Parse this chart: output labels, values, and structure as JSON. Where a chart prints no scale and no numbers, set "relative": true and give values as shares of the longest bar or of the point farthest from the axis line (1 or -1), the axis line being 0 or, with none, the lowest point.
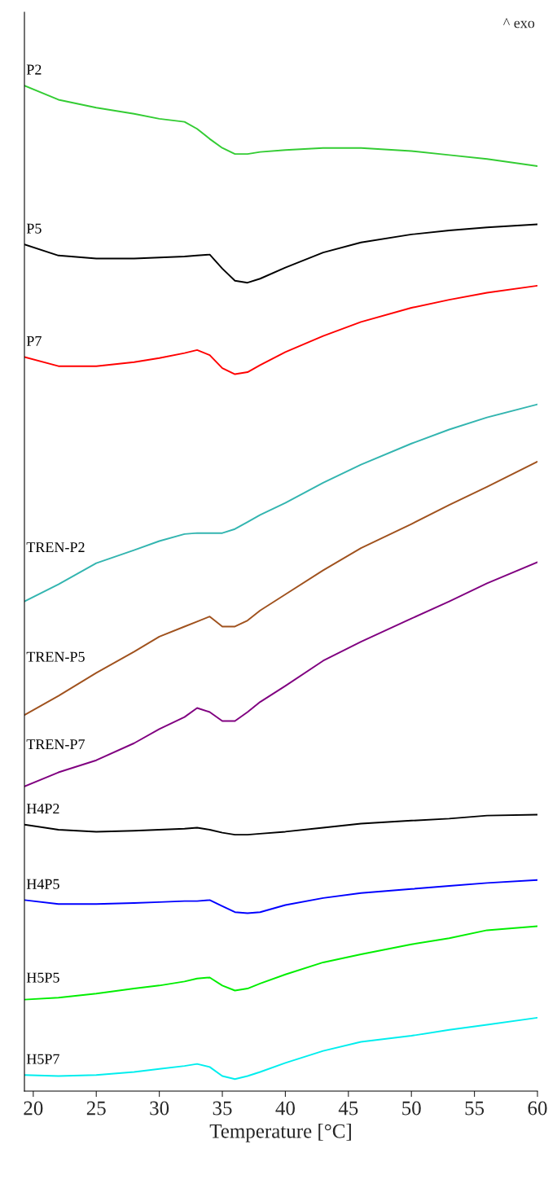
{
  "chart_data": {
    "type": "line",
    "relative": true,
    "xlabel": "Temperature [°C]",
    "annotations": [
      "^ exo"
    ],
    "x": [
      19.3,
      22,
      25,
      28,
      30,
      32,
      33,
      34,
      35,
      36,
      37,
      38,
      40,
      43,
      46,
      50,
      53,
      56,
      60
    ],
    "xlim": [
      19.3,
      60
    ],
    "xticks": [
      20,
      25,
      30,
      35,
      40,
      45,
      50,
      55,
      60
    ],
    "grid": false,
    "legend": false,
    "marker": "none",
    "line_style": "solid",
    "series": [
      {
        "name": "P2",
        "color": "#33cc33",
        "values": [
          1.0,
          0.986,
          0.978,
          0.972,
          0.967,
          0.964,
          0.957,
          0.947,
          0.938,
          0.932,
          0.932,
          0.934,
          0.936,
          0.938,
          0.938,
          0.935,
          0.931,
          0.927,
          0.92
        ]
      },
      {
        "name": "P5",
        "color": "#000000",
        "values": [
          0.842,
          0.831,
          0.828,
          0.828,
          0.829,
          0.83,
          0.831,
          0.832,
          0.818,
          0.806,
          0.804,
          0.808,
          0.819,
          0.834,
          0.844,
          0.852,
          0.856,
          0.859,
          0.862
        ]
      },
      {
        "name": "P7",
        "color": "#ff0000",
        "values": [
          0.73,
          0.721,
          0.721,
          0.725,
          0.729,
          0.734,
          0.737,
          0.732,
          0.719,
          0.713,
          0.715,
          0.722,
          0.735,
          0.751,
          0.765,
          0.779,
          0.787,
          0.794,
          0.801
        ]
      },
      {
        "name": "TREN-P2",
        "color": "#33b5b0",
        "values": [
          0.487,
          0.504,
          0.525,
          0.538,
          0.547,
          0.554,
          0.555,
          0.555,
          0.555,
          0.559,
          0.566,
          0.573,
          0.585,
          0.605,
          0.623,
          0.644,
          0.658,
          0.67,
          0.683
        ]
      },
      {
        "name": "TREN-P5",
        "color": "#a0521e",
        "values": [
          0.374,
          0.393,
          0.416,
          0.437,
          0.452,
          0.462,
          0.467,
          0.472,
          0.462,
          0.462,
          0.468,
          0.478,
          0.494,
          0.518,
          0.54,
          0.564,
          0.583,
          0.601,
          0.626
        ]
      },
      {
        "name": "TREN-P7",
        "color": "#800080",
        "values": [
          0.303,
          0.317,
          0.329,
          0.346,
          0.36,
          0.372,
          0.381,
          0.377,
          0.368,
          0.368,
          0.377,
          0.387,
          0.403,
          0.428,
          0.447,
          0.47,
          0.487,
          0.505,
          0.526
        ]
      },
      {
        "name": "H4P2",
        "color": "#000000",
        "values": [
          0.265,
          0.26,
          0.258,
          0.259,
          0.26,
          0.261,
          0.262,
          0.26,
          0.257,
          0.255,
          0.255,
          0.256,
          0.258,
          0.262,
          0.266,
          0.269,
          0.271,
          0.274,
          0.275
        ]
      },
      {
        "name": "H4P5",
        "color": "#0000ff",
        "values": [
          0.19,
          0.186,
          0.186,
          0.187,
          0.188,
          0.189,
          0.189,
          0.19,
          0.184,
          0.178,
          0.177,
          0.178,
          0.185,
          0.192,
          0.197,
          0.201,
          0.204,
          0.207,
          0.21
        ]
      },
      {
        "name": "H5P5",
        "color": "#00ee00",
        "values": [
          0.091,
          0.093,
          0.097,
          0.102,
          0.105,
          0.109,
          0.112,
          0.113,
          0.105,
          0.1,
          0.102,
          0.107,
          0.116,
          0.128,
          0.136,
          0.146,
          0.152,
          0.16,
          0.164
        ]
      },
      {
        "name": "H5P7",
        "color": "#00eeee",
        "values": [
          0.016,
          0.015,
          0.016,
          0.019,
          0.022,
          0.025,
          0.027,
          0.024,
          0.015,
          0.012,
          0.015,
          0.019,
          0.028,
          0.04,
          0.049,
          0.055,
          0.061,
          0.066,
          0.073
        ]
      }
    ]
  }
}
